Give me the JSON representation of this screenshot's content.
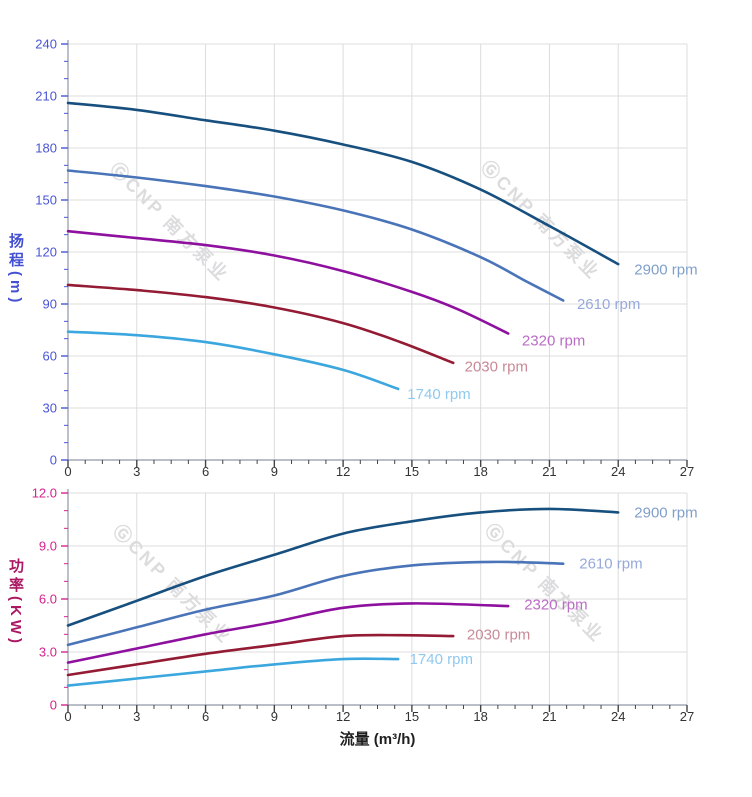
{
  "watermark": {
    "text": "ⒼCNP 南方泵业"
  },
  "chart_data": [
    {
      "type": "line",
      "title": "",
      "xlabel": "",
      "ylabel": "扬程(m)",
      "xlim": [
        0,
        27
      ],
      "ylim": [
        0,
        240
      ],
      "grid": true,
      "legend_position": "labels at curve ends",
      "x_tick_step": 3,
      "x_minor_step": 0.75,
      "y_tick_step": 30,
      "y_minor_step": 10,
      "x_tick_labels": [
        "0",
        "3",
        "6",
        "9",
        "12",
        "15",
        "18",
        "21",
        "24",
        "27"
      ],
      "y_tick_labels": [
        "0",
        "30",
        "60",
        "90",
        "120",
        "150",
        "180",
        "210",
        "240"
      ],
      "tick_label_color": "#4a55d4",
      "x_tick_label_color": "#333333",
      "series": [
        {
          "name": "2900 rpm",
          "color": "#17507e",
          "label_color": "#7f9fca",
          "label_at": [
            24.7,
            110
          ],
          "points": [
            [
              0,
              206
            ],
            [
              3,
              202
            ],
            [
              6,
              196
            ],
            [
              9,
              190
            ],
            [
              12,
              182
            ],
            [
              15,
              172
            ],
            [
              18,
              156
            ],
            [
              21,
              135
            ],
            [
              24,
              113
            ]
          ]
        },
        {
          "name": "2610 rpm",
          "color": "#4a74b8",
          "label_color": "#97a9da",
          "label_at": [
            22.2,
            90
          ],
          "points": [
            [
              0,
              167
            ],
            [
              3,
              163
            ],
            [
              6,
              158
            ],
            [
              9,
              152
            ],
            [
              12,
              144
            ],
            [
              15,
              133
            ],
            [
              18,
              117
            ],
            [
              20,
              103
            ],
            [
              21.6,
              92
            ]
          ]
        },
        {
          "name": "2320 rpm",
          "color": "#8e109e",
          "label_color": "#bb6cc6",
          "label_at": [
            19.8,
            69
          ],
          "points": [
            [
              0,
              132
            ],
            [
              3,
              128
            ],
            [
              6,
              124
            ],
            [
              9,
              118
            ],
            [
              12,
              109
            ],
            [
              15,
              97
            ],
            [
              17,
              87
            ],
            [
              19.2,
              73
            ]
          ]
        },
        {
          "name": "2030 rpm",
          "color": "#931b33",
          "label_color": "#c98a96",
          "label_at": [
            17.3,
            54
          ],
          "points": [
            [
              0,
              101
            ],
            [
              3,
              98
            ],
            [
              6,
              94
            ],
            [
              9,
              88
            ],
            [
              12,
              79
            ],
            [
              14.5,
              68
            ],
            [
              16.8,
              56
            ]
          ]
        },
        {
          "name": "1740 rpm",
          "color": "#3ba7de",
          "label_color": "#8fc9ef",
          "label_at": [
            14.8,
            38
          ],
          "points": [
            [
              0,
              74
            ],
            [
              3,
              72
            ],
            [
              6,
              68
            ],
            [
              9,
              61
            ],
            [
              12,
              52
            ],
            [
              14.4,
              41
            ]
          ]
        }
      ]
    },
    {
      "type": "line",
      "title": "",
      "xlabel": "流量 (m³/h)",
      "ylabel": "功率(KW)",
      "xlim": [
        0,
        27
      ],
      "ylim": [
        0,
        12
      ],
      "grid": true,
      "legend_position": "labels at curve ends",
      "x_tick_step": 3,
      "x_minor_step": 0.75,
      "y_tick_step": 3,
      "y_minor_step": 1,
      "x_tick_labels": [
        "0",
        "3",
        "6",
        "9",
        "12",
        "15",
        "18",
        "21",
        "24",
        "27"
      ],
      "y_tick_labels": [
        "0",
        "3.0",
        "6.0",
        "9.0",
        "12.0"
      ],
      "tick_label_color": "#d4238e",
      "x_tick_label_color": "#333333",
      "series": [
        {
          "name": "2900 rpm",
          "color": "#17507e",
          "label_color": "#7f9fca",
          "label_at": [
            24.7,
            10.9
          ],
          "points": [
            [
              0,
              4.5
            ],
            [
              3,
              5.9
            ],
            [
              6,
              7.3
            ],
            [
              9,
              8.5
            ],
            [
              12,
              9.7
            ],
            [
              15,
              10.4
            ],
            [
              18,
              10.9
            ],
            [
              21,
              11.1
            ],
            [
              24,
              10.9
            ]
          ]
        },
        {
          "name": "2610 rpm",
          "color": "#4a74b8",
          "label_color": "#97a9da",
          "label_at": [
            22.3,
            8.0
          ],
          "points": [
            [
              0,
              3.4
            ],
            [
              3,
              4.4
            ],
            [
              6,
              5.4
            ],
            [
              9,
              6.2
            ],
            [
              12,
              7.3
            ],
            [
              15,
              7.9
            ],
            [
              18.5,
              8.1
            ],
            [
              21.6,
              8.0
            ]
          ]
        },
        {
          "name": "2320 rpm",
          "color": "#8e109e",
          "label_color": "#bb6cc6",
          "label_at": [
            19.9,
            5.7
          ],
          "points": [
            [
              0,
              2.4
            ],
            [
              3,
              3.2
            ],
            [
              6,
              4.0
            ],
            [
              9,
              4.7
            ],
            [
              12,
              5.5
            ],
            [
              15,
              5.75
            ],
            [
              19.2,
              5.6
            ]
          ]
        },
        {
          "name": "2030 rpm",
          "color": "#931b33",
          "label_color": "#c98a96",
          "label_at": [
            17.4,
            4.0
          ],
          "points": [
            [
              0,
              1.7
            ],
            [
              3,
              2.3
            ],
            [
              6,
              2.9
            ],
            [
              9,
              3.4
            ],
            [
              12,
              3.9
            ],
            [
              14.5,
              3.95
            ],
            [
              16.8,
              3.9
            ]
          ]
        },
        {
          "name": "1740 rpm",
          "color": "#3ba7de",
          "label_color": "#8fc9ef",
          "label_at": [
            14.9,
            2.6
          ],
          "points": [
            [
              0,
              1.1
            ],
            [
              3,
              1.5
            ],
            [
              6,
              1.9
            ],
            [
              9,
              2.3
            ],
            [
              12,
              2.6
            ],
            [
              14.4,
              2.6
            ]
          ]
        }
      ]
    }
  ]
}
